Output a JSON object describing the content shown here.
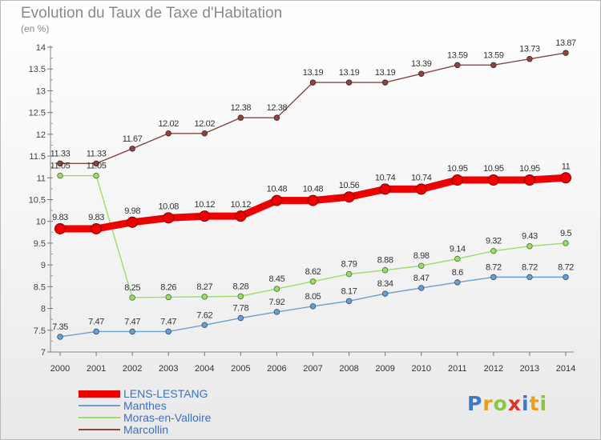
{
  "header": {
    "title": "Evolution du Taux de Taxe d'Habitation",
    "unit": "(en %)"
  },
  "logo": {
    "text": "Proxiti",
    "letters": [
      {
        "ch": "P",
        "color": "#3b7ac8"
      },
      {
        "ch": "r",
        "color": "#e4a21b"
      },
      {
        "ch": "o",
        "color": "#8cc63f"
      },
      {
        "ch": "x",
        "color": "#e0322a"
      },
      {
        "ch": "i",
        "color": "#3b7ac8"
      },
      {
        "ch": "t",
        "color": "#e4a21b"
      },
      {
        "ch": "i",
        "color": "#8cc63f"
      }
    ]
  },
  "chart_data": {
    "type": "line",
    "title": "Evolution du Taux de Taxe d'Habitation",
    "ylabel": "(en %)",
    "xlabel": "",
    "x": [
      2000,
      2001,
      2002,
      2003,
      2004,
      2005,
      2006,
      2007,
      2008,
      2009,
      2010,
      2011,
      2012,
      2013,
      2014
    ],
    "ylim": [
      7,
      14
    ],
    "yticks": [
      7,
      7.5,
      8,
      8.5,
      9,
      9.5,
      10,
      10.5,
      11,
      11.5,
      12,
      12.5,
      13,
      13.5,
      14
    ],
    "grid": false,
    "legend": "bottom-left",
    "series": [
      {
        "name": "LENS-LESTANG",
        "color": "#ee0000",
        "emphasis": true,
        "values": [
          9.83,
          9.83,
          9.98,
          10.08,
          10.12,
          10.12,
          10.48,
          10.48,
          10.56,
          10.74,
          10.74,
          10.95,
          10.95,
          10.95,
          11
        ],
        "labels": [
          "9.83",
          "9.83",
          "9.98",
          "10.08",
          "10.12",
          "10.12",
          "10.48",
          "10.48",
          "10.56",
          "10.74",
          "10.74",
          "10.95",
          "10.95",
          "10.95",
          "11"
        ]
      },
      {
        "name": "Manthes",
        "color": "#6c9ed1",
        "emphasis": false,
        "values": [
          7.35,
          7.47,
          7.47,
          7.47,
          7.62,
          7.78,
          7.92,
          8.05,
          8.17,
          8.34,
          8.47,
          8.6,
          8.72,
          8.72,
          8.72
        ],
        "labels": [
          "7.35",
          "7.47",
          "7.47",
          "7.47",
          "7.62",
          "7.78",
          "7.92",
          "8.05",
          "8.17",
          "8.34",
          "8.47",
          "8.6",
          "8.72",
          "8.72",
          "8.72"
        ]
      },
      {
        "name": "Moras-en-Valloire",
        "color": "#9bdc6b",
        "emphasis": false,
        "values": [
          11.05,
          11.05,
          8.25,
          8.26,
          8.27,
          8.28,
          8.45,
          8.62,
          8.79,
          8.88,
          8.98,
          9.14,
          9.32,
          9.43,
          9.5
        ],
        "labels": [
          "11.05",
          "11.05",
          "8.25",
          "8.26",
          "8.27",
          "8.28",
          "8.45",
          "8.62",
          "8.79",
          "8.88",
          "8.98",
          "9.14",
          "9.32",
          "9.43",
          "9.5"
        ]
      },
      {
        "name": "Marcollin",
        "color": "#8b4545",
        "emphasis": false,
        "values": [
          11.33,
          11.33,
          11.67,
          12.02,
          12.02,
          12.38,
          12.38,
          13.19,
          13.19,
          13.19,
          13.39,
          13.59,
          13.59,
          13.73,
          13.87
        ],
        "labels": [
          "11.33",
          "11.33",
          "11.67",
          "12.02",
          "12.02",
          "12.38",
          "12.38",
          "13.19",
          "13.19",
          "13.19",
          "13.39",
          "13.59",
          "13.59",
          "13.73",
          "13.87"
        ]
      }
    ]
  }
}
